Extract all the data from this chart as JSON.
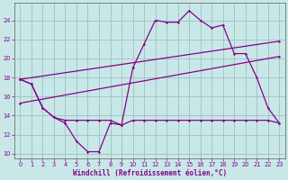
{
  "xlabel": "Windchill (Refroidissement éolien,°C)",
  "background_color": "#c8e8e8",
  "grid_color": "#a0c0c0",
  "line_color": "#880088",
  "x_hours": [
    0,
    1,
    2,
    3,
    4,
    5,
    6,
    7,
    8,
    9,
    10,
    11,
    12,
    13,
    14,
    15,
    16,
    17,
    18,
    19,
    20,
    21,
    22,
    23
  ],
  "line1_y": [
    17.8,
    17.3,
    14.8,
    13.8,
    13.2,
    11.3,
    10.2,
    10.2,
    13.2,
    13.0,
    19.0,
    21.5,
    24.0,
    23.8,
    23.8,
    25.0,
    24.0,
    23.2,
    23.5,
    20.5,
    20.5,
    18.0,
    14.8,
    13.2
  ],
  "line2_y": [
    17.8,
    17.3,
    14.8,
    13.8,
    13.5,
    13.5,
    13.5,
    13.5,
    13.5,
    13.0,
    13.5,
    13.5,
    13.5,
    13.5,
    13.5,
    13.5,
    13.5,
    13.5,
    13.5,
    13.5,
    13.5,
    13.5,
    13.5,
    13.2
  ],
  "line3_y": [
    17.8,
    21.8
  ],
  "line4_y": [
    15.3,
    20.2
  ],
  "line3_x": [
    0,
    23
  ],
  "line4_x": [
    0,
    23
  ],
  "ylim": [
    9.5,
    25.8
  ],
  "xlim": [
    -0.5,
    23.5
  ],
  "yticks": [
    10,
    12,
    14,
    16,
    18,
    20,
    22,
    24
  ],
  "xticks": [
    0,
    1,
    2,
    3,
    4,
    5,
    6,
    7,
    8,
    9,
    10,
    11,
    12,
    13,
    14,
    15,
    16,
    17,
    18,
    19,
    20,
    21,
    22,
    23
  ],
  "xlabel_fontsize": 5.5,
  "tick_fontsize": 4.8,
  "linewidth": 0.9,
  "markersize": 1.6
}
